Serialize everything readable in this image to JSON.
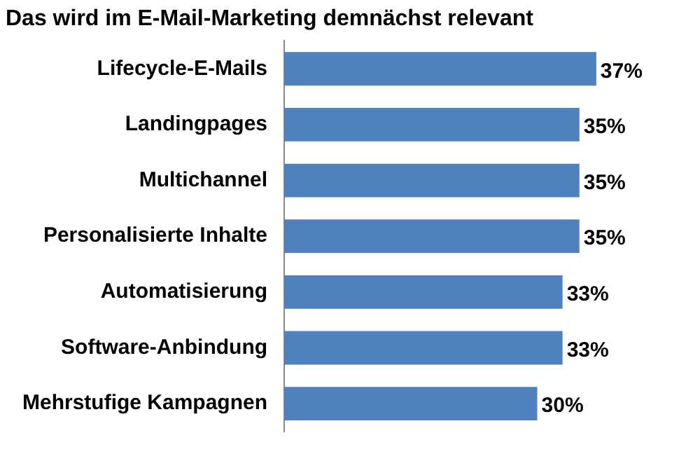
{
  "chart_data": {
    "type": "bar",
    "orientation": "horizontal",
    "title": "Das wird im E-Mail-Marketing demnächst relevant",
    "categories": [
      "Lifecycle-E-Mails",
      "Landingpages",
      "Multichannel",
      "Personalisierte Inhalte",
      "Automatisierung",
      "Software-Anbindung",
      "Mehrstufige Kampagnen"
    ],
    "values": [
      37,
      35,
      35,
      35,
      33,
      33,
      30
    ],
    "value_labels": [
      "37%",
      "35%",
      "35%",
      "35%",
      "33%",
      "33%",
      "30%"
    ],
    "color": "#4f81bd",
    "grid": false,
    "legend": false,
    "tick_labels": "y"
  }
}
